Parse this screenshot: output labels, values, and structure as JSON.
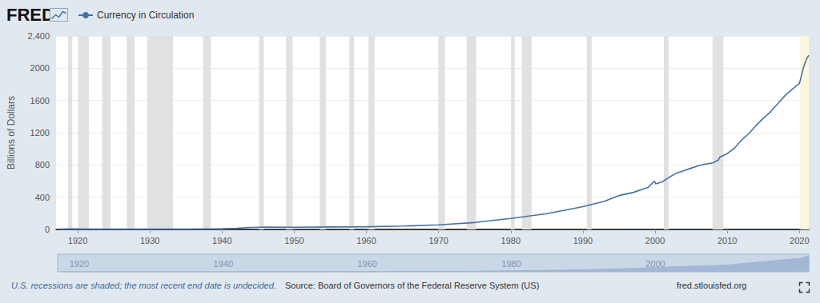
{
  "logo": "FRED",
  "note": "U.S. recessions are shaded; the most recent end date is undecided.",
  "source": "Source: Board of Governors of the Federal Reserve System (US)",
  "site": "fred.stlouisfed.org",
  "chart_data": [
    {
      "type": "line",
      "y_label": "Billions of Dollars",
      "legend": "top left",
      "grid": true,
      "xlim": [
        1917,
        2021.3
      ],
      "xticks": [
        1920,
        1930,
        1940,
        1950,
        1960,
        1970,
        1980,
        1990,
        2000,
        2010,
        2020
      ],
      "ylim": [
        0,
        2400
      ],
      "yticks": [
        0,
        400,
        800,
        1200,
        1600,
        2000,
        {
          "value": 2400,
          "label": "2,400"
        }
      ],
      "x": [
        1917.6,
        1919,
        1920,
        1921,
        1925,
        1930,
        1932,
        1935,
        1938,
        1940,
        1942,
        1943,
        1944,
        1945,
        1946,
        1950,
        1955,
        1960,
        1965,
        1970,
        1975,
        1980,
        1985,
        1990,
        1993,
        1995,
        1997,
        1999,
        1999.92,
        2000.08,
        2001,
        2002,
        2003,
        2004,
        2005,
        2006,
        2007,
        2008,
        2008.75,
        2009,
        2010,
        2011,
        2012,
        2013,
        2014,
        2015,
        2016,
        2017,
        2018,
        2019,
        2020,
        2020.2,
        2020.5,
        2021,
        2021.3
      ],
      "series": [
        {
          "name": "Currency in Circulation",
          "color": "#4572a7",
          "values": [
            4.5,
            5.8,
            5.9,
            5.2,
            4.8,
            4.5,
            5.5,
            5.6,
            6.5,
            8.5,
            15,
            20,
            25,
            28,
            28.5,
            27.5,
            31,
            33,
            42,
            57,
            86,
            137,
            196,
            283,
            350,
            420,
            460,
            520,
            600,
            565,
            590,
            650,
            700,
            730,
            760,
            790,
            810,
            825,
            860,
            900,
            940,
            1010,
            1110,
            1190,
            1290,
            1380,
            1460,
            1560,
            1660,
            1740,
            1810,
            1880,
            1990,
            2120,
            2160
          ]
        }
      ],
      "recessions": [
        [
          1918.67,
          1919.25
        ],
        [
          1920.04,
          1921.54
        ],
        [
          1923.38,
          1924.54
        ],
        [
          1926.79,
          1927.88
        ],
        [
          1929.63,
          1933.21
        ],
        [
          1937.38,
          1938.46
        ],
        [
          1945.13,
          1945.79
        ],
        [
          1948.88,
          1949.79
        ],
        [
          1953.54,
          1954.38
        ],
        [
          1957.63,
          1958.29
        ],
        [
          1960.29,
          1961.13
        ],
        [
          1969.96,
          1970.88
        ],
        [
          1973.88,
          1975.21
        ],
        [
          1980.04,
          1980.54
        ],
        [
          1981.54,
          1982.88
        ],
        [
          1990.54,
          1991.21
        ],
        [
          2001.21,
          2001.88
        ],
        [
          2007.96,
          2009.46
        ]
      ],
      "recession_undecided": [
        2020.13,
        2021.3
      ]
    },
    {
      "type": "area",
      "color": "#9db5d4",
      "tick_labels": "x",
      "xlim": [
        1917,
        2021.3
      ],
      "xticks": [
        1920,
        1940,
        1960,
        1980,
        2000,
        2020
      ],
      "ylim": [
        0,
        2400
      ]
    }
  ]
}
